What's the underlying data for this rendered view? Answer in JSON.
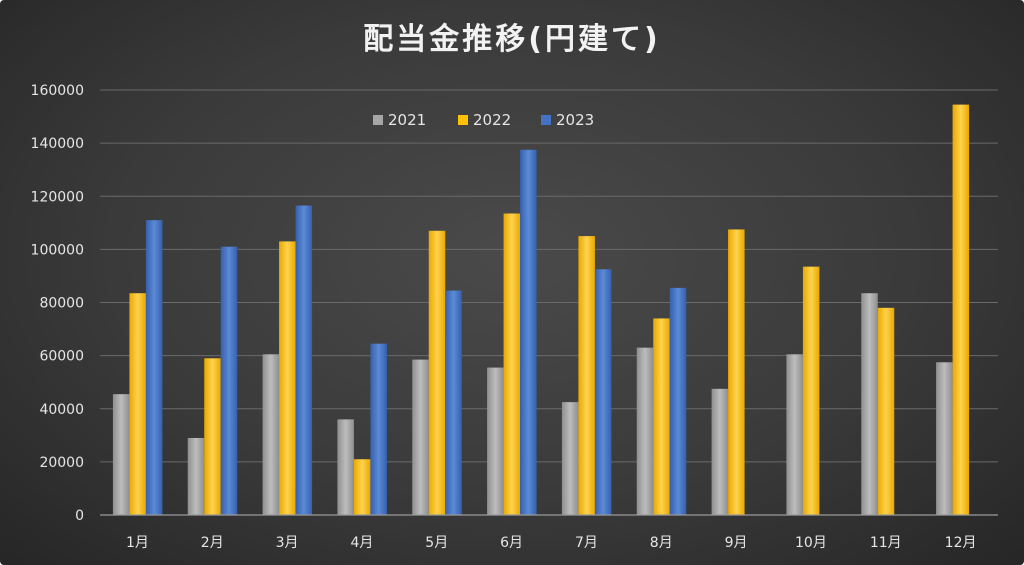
{
  "chart_data": {
    "type": "bar",
    "title": "配当金推移(円建て)",
    "categories": [
      "1月",
      "2月",
      "3月",
      "4月",
      "5月",
      "6月",
      "7月",
      "8月",
      "9月",
      "10月",
      "11月",
      "12月"
    ],
    "series": [
      {
        "name": "2021",
        "values": [
          45500,
          29000,
          60500,
          36000,
          58500,
          55500,
          42500,
          63000,
          47500,
          60500,
          83500,
          57500
        ],
        "color": "#a6a6a6"
      },
      {
        "name": "2022",
        "values": [
          83500,
          59000,
          103000,
          21000,
          107000,
          113500,
          105000,
          74000,
          107500,
          93500,
          78000,
          154500
        ],
        "color": "#ffc000"
      },
      {
        "name": "2023",
        "values": [
          111000,
          101000,
          116500,
          64500,
          84500,
          137500,
          92500,
          85500,
          null,
          null,
          null,
          null
        ],
        "color": "#4472c4"
      }
    ],
    "yticks": [
      "0",
      "20000",
      "40000",
      "60000",
      "80000",
      "100000",
      "120000",
      "140000",
      "160000"
    ],
    "ylim": [
      0,
      160000
    ],
    "grid": true,
    "legend_position": "top"
  }
}
